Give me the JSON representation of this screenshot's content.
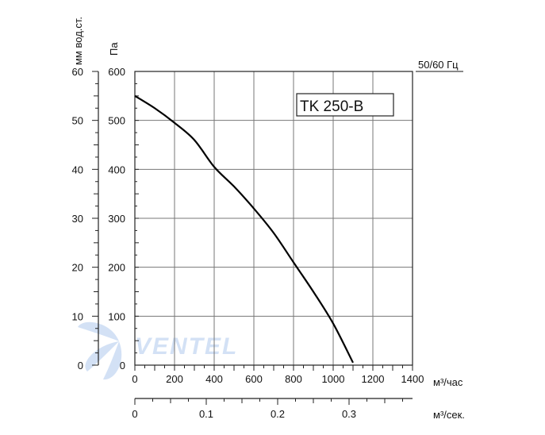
{
  "chart_data": {
    "type": "line",
    "model_label": "TK 250-B",
    "frequency_label": "50/60 Гц",
    "watermark": "VENTEL",
    "x_primary": {
      "label": "м³/час",
      "range": [
        0,
        1400
      ],
      "ticks": [
        "0",
        "200",
        "400",
        "600",
        "800",
        "1000",
        "1200",
        "1400"
      ]
    },
    "x_secondary": {
      "label": "м³/сек.",
      "range": [
        0,
        0.3889
      ],
      "ticks": [
        "0",
        "0.1",
        "0.2",
        "0.3"
      ]
    },
    "y_primary": {
      "label": "Па",
      "range": [
        0,
        600
      ],
      "ticks": [
        "0",
        "100",
        "200",
        "300",
        "400",
        "500",
        "600"
      ]
    },
    "y_secondary": {
      "label": "мм вод.ст.",
      "range": [
        0,
        60
      ],
      "ticks": [
        "0",
        "10",
        "20",
        "30",
        "40",
        "50",
        "60"
      ]
    },
    "grid": true,
    "series": [
      {
        "color": "#000000",
        "points": [
          [
            0,
            550
          ],
          [
            100,
            525
          ],
          [
            200,
            495
          ],
          [
            300,
            460
          ],
          [
            400,
            405
          ],
          [
            500,
            365
          ],
          [
            600,
            320
          ],
          [
            700,
            270
          ],
          [
            800,
            210
          ],
          [
            900,
            150
          ],
          [
            1000,
            85
          ],
          [
            1100,
            5
          ]
        ]
      }
    ]
  }
}
